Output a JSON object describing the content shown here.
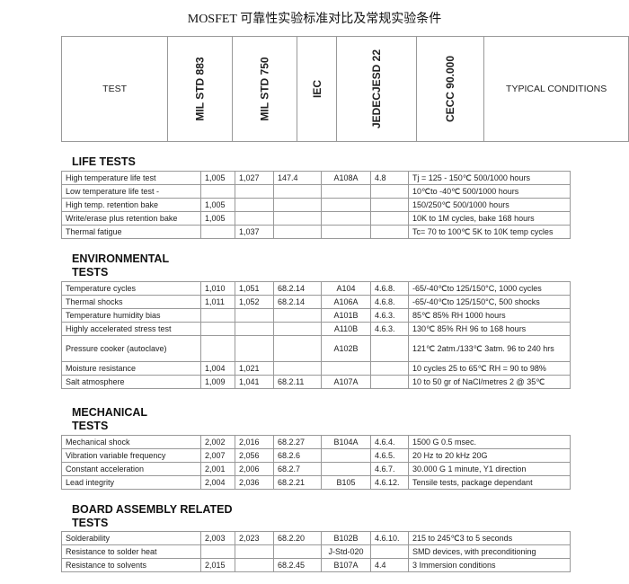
{
  "title": "MOSFET 可靠性实验标准对比及常规实验条件",
  "headers": [
    "TEST",
    "MIL STD 883",
    "MIL STD 750",
    "IEC",
    "JEDECJESD 22",
    "CECC 90.000",
    "TYPICAL CONDITIONS"
  ],
  "sections": [
    {
      "title": [
        "LIFE TESTS"
      ],
      "rows": [
        [
          "High temperature life test",
          "1,005",
          "1,027",
          "147.4",
          "A108A",
          "4.8",
          "Tj = 125 - 150℃ 500/1000 hours"
        ],
        [
          "Low temperature life test -",
          "",
          "",
          "",
          "",
          "",
          "10℃to -40℃ 500/1000 hours"
        ],
        [
          "High temp. retention bake",
          "1,005",
          "",
          "",
          "",
          "",
          "150/250℃ 500/1000 hours"
        ],
        [
          "Write/erase plus retention bake",
          "1,005",
          "",
          "",
          "",
          "",
          "10K to 1M cycles, bake 168 hours"
        ],
        [
          "Thermal fatigue",
          "",
          "1,037",
          "",
          "",
          "",
          "Tc= 70 to 100℃ 5K to 10K temp cycles"
        ]
      ]
    },
    {
      "title": [
        "ENVIRONMENTAL",
        "TESTS"
      ],
      "rows": [
        [
          "Temperature cycles",
          "1,010",
          "1,051",
          "68.2.14",
          "A104",
          "4.6.8.",
          "-65/-40℃to 125/150°C, 1000 cycles"
        ],
        [
          "Thermal shocks",
          "1,011",
          "1,052",
          "68.2.14",
          "A106A",
          "4.6.8.",
          "-65/-40℃to 125/150°C, 500 shocks"
        ],
        [
          "Temperature humidity bias",
          "",
          "",
          "",
          "A101B",
          "4.6.3.",
          "85℃ 85% RH 1000 hours"
        ],
        [
          "Highly accelerated stress test",
          "",
          "",
          "",
          "A110B",
          "4.6.3.",
          "130℃ 85% RH 96 to 168 hours"
        ],
        [
          "Pressure cooker (autoclave)",
          "",
          "",
          "",
          "A102B",
          "",
          "121℃ 2atm./133℃ 3atm. 96 to 240 hrs"
        ],
        [
          "Moisture resistance",
          "1,004",
          "1,021",
          "",
          "",
          "",
          "10 cycles 25 to 65℃ RH = 90 to 98%"
        ],
        [
          "Salt atmosphere",
          "1,009",
          "1,041",
          "68.2.11",
          "A107A",
          "",
          "10 to 50 gr of NaCl/metres 2 @ 35℃"
        ]
      ]
    },
    {
      "title": [
        "MECHANICAL",
        "TESTS"
      ],
      "rows": [
        [
          "Mechanical shock",
          "2,002",
          "2,016",
          "68.2.27",
          "B104A",
          "4.6.4.",
          "1500 G 0.5 msec."
        ],
        [
          "Vibration variable frequency",
          "2,007",
          "2,056",
          "68.2.6",
          "",
          "4.6.5.",
          "20 Hz to 20 kHz 20G"
        ],
        [
          "Constant acceleration",
          "2,001",
          "2,006",
          "68.2.7",
          "",
          "4.6.7.",
          "30.000 G 1 minute, Y1 direction"
        ],
        [
          "Lead integrity",
          "2,004",
          "2,036",
          "68.2.21",
          "B105",
          "4.6.12.",
          "Tensile tests, package dependant"
        ]
      ]
    },
    {
      "title": [
        "BOARD ASSEMBLY RELATED",
        "TESTS"
      ],
      "rows": [
        [
          "Solderability",
          "2,003",
          "2,023",
          "68.2.20",
          "B102B",
          "4.6.10.",
          "215 to 245℃3 to 5 seconds"
        ],
        [
          "Resistance to solder heat",
          "",
          "",
          "",
          "J-Std-020",
          "",
          "SMD devices, with preconditioning"
        ],
        [
          "Resistance to solvents",
          "2,015",
          "",
          "68.2.45",
          "B107A",
          "4.4",
          "3 Immersion conditions"
        ]
      ]
    }
  ]
}
